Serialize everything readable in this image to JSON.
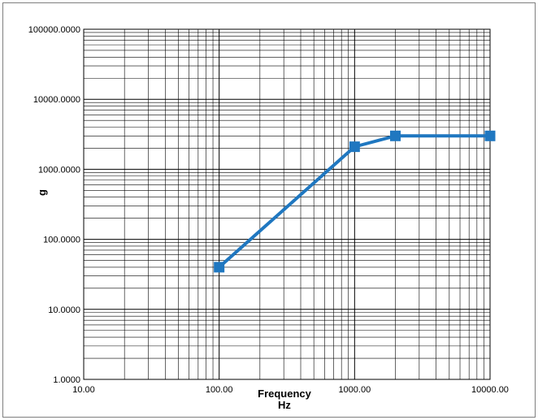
{
  "chart_data": {
    "type": "line",
    "title": "",
    "xlabel": "Frequency",
    "xunit": "Hz",
    "ylabel": "g",
    "xscale": "log",
    "yscale": "log",
    "xlim": [
      10,
      10000
    ],
    "ylim": [
      1,
      100000
    ],
    "grid": true,
    "legend": "none",
    "x_tick_labels": [
      "10.00",
      "100.00",
      "1000.00",
      "10000.00"
    ],
    "y_tick_labels": [
      "1.0000",
      "10.0000",
      "100.0000",
      "1000.0000",
      "10000.0000",
      "100000.0000"
    ],
    "series": [
      {
        "x": [
          100,
          1000,
          2000,
          10000
        ],
        "y": [
          40,
          2100,
          3000,
          3000
        ],
        "color": "#1f77c0",
        "marker": "square"
      }
    ]
  }
}
